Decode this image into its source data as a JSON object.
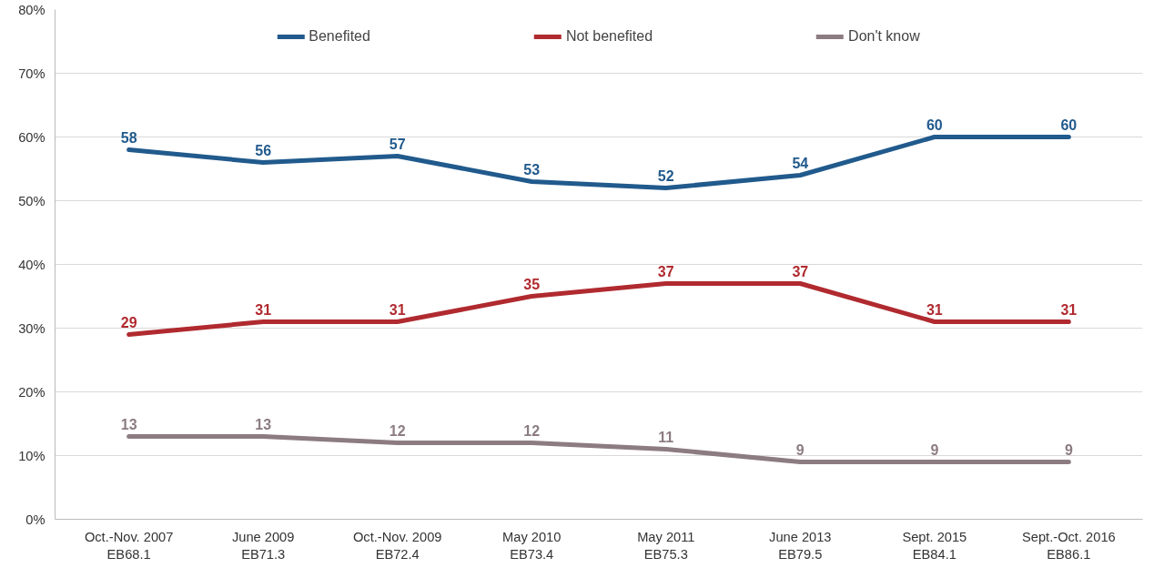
{
  "chart_data": {
    "type": "line",
    "categories": [
      "Oct.-Nov. 2007\nEB68.1",
      "June 2009\nEB71.3",
      "Oct.-Nov. 2009\nEB72.4",
      "May 2010\nEB73.4",
      "May 2011\nEB75.3",
      "June 2013\nEB79.5",
      "Sept. 2015\nEB84.1",
      "Sept.-Oct. 2016\nEB86.1"
    ],
    "series": [
      {
        "name": "Benefited",
        "color": "#215a8c",
        "values": [
          58,
          56,
          57,
          53,
          52,
          54,
          60,
          60
        ]
      },
      {
        "name": "Not benefited",
        "color": "#b02a2f",
        "values": [
          29,
          31,
          31,
          35,
          37,
          37,
          31,
          31
        ]
      },
      {
        "name": "Don't know",
        "color": "#8c7c82",
        "values": [
          13,
          13,
          12,
          12,
          11,
          9,
          9,
          9
        ]
      }
    ],
    "ylim": [
      0,
      80
    ],
    "yticks": [
      {
        "value": 0,
        "label": "0%"
      },
      {
        "value": 10,
        "label": "10%"
      },
      {
        "value": 20,
        "label": "20%"
      },
      {
        "value": 30,
        "label": "30%"
      },
      {
        "value": 40,
        "label": "40%"
      },
      {
        "value": 50,
        "label": "50%"
      },
      {
        "value": 60,
        "label": "60%"
      },
      {
        "value": 70,
        "label": "70%"
      },
      {
        "value": 80,
        "label": "80%"
      }
    ],
    "grid": "y",
    "legend": "top",
    "marker": "none",
    "line_style": "solid",
    "data_labels": true
  }
}
